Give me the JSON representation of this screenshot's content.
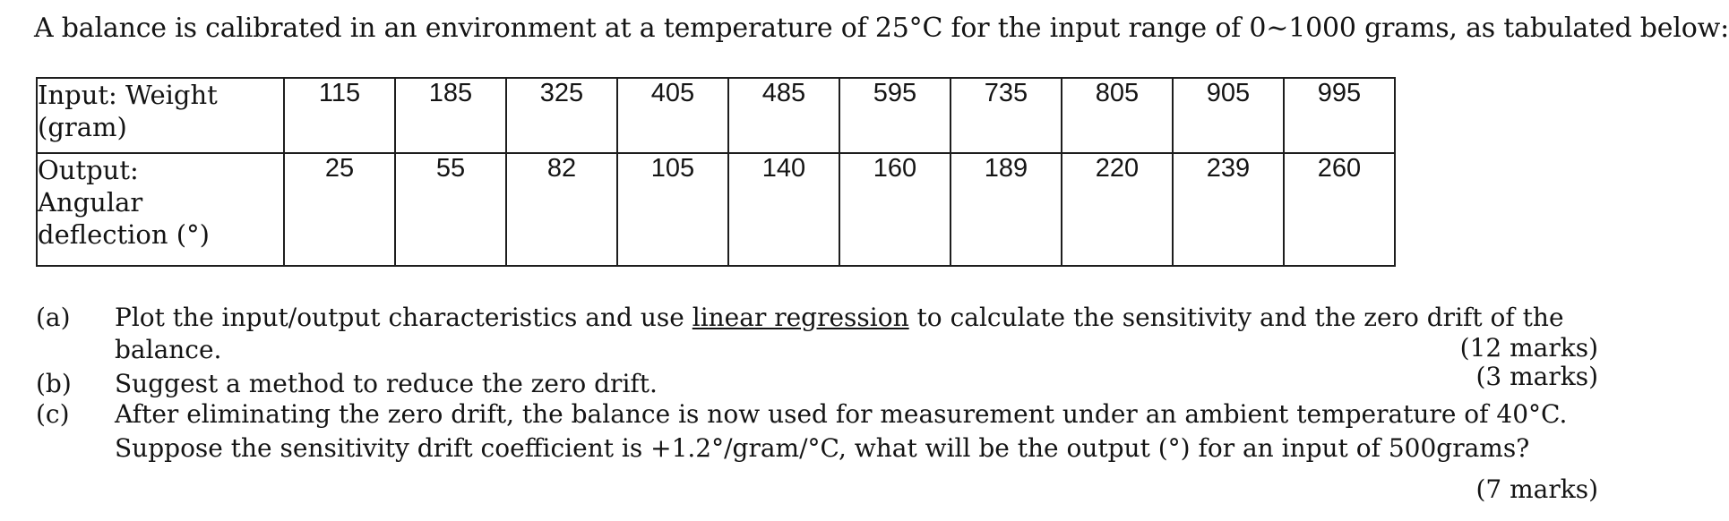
{
  "intro": "A balance is calibrated in an environment at a temperature of 25°C for the input range of 0~1000 grams, as tabulated below:",
  "table": {
    "input_label": [
      "Input: Weight",
      "(gram)"
    ],
    "output_label": [
      "Output:",
      "Angular",
      "deflection (°)"
    ],
    "inputs": [
      "115",
      "185",
      "325",
      "405",
      "485",
      "595",
      "735",
      "805",
      "905",
      "995"
    ],
    "outputs": [
      "25",
      "55",
      "82",
      "105",
      "140",
      "160",
      "189",
      "220",
      "239",
      "260"
    ]
  },
  "questions": {
    "a": {
      "label": "(a)",
      "line1_pre": "Plot the input/output characteristics and use ",
      "line1_u": "linear regression",
      "line1_post": " to calculate the sensitivity and the zero drift of the",
      "line2": "balance.",
      "marks": "(12 marks)"
    },
    "b": {
      "label": "(b)",
      "line1": "Suggest a method to reduce the zero drift.",
      "marks": "(3 marks)"
    },
    "c": {
      "label": "(c)",
      "line1": "After eliminating the zero drift, the balance is now used for measurement under an ambient temperature of 40°C.",
      "line2": "Suppose the sensitivity drift coefficient is +1.2°/gram/°C, what will be the output (°) for an input of 500grams?",
      "marks": "(7 marks)"
    }
  }
}
